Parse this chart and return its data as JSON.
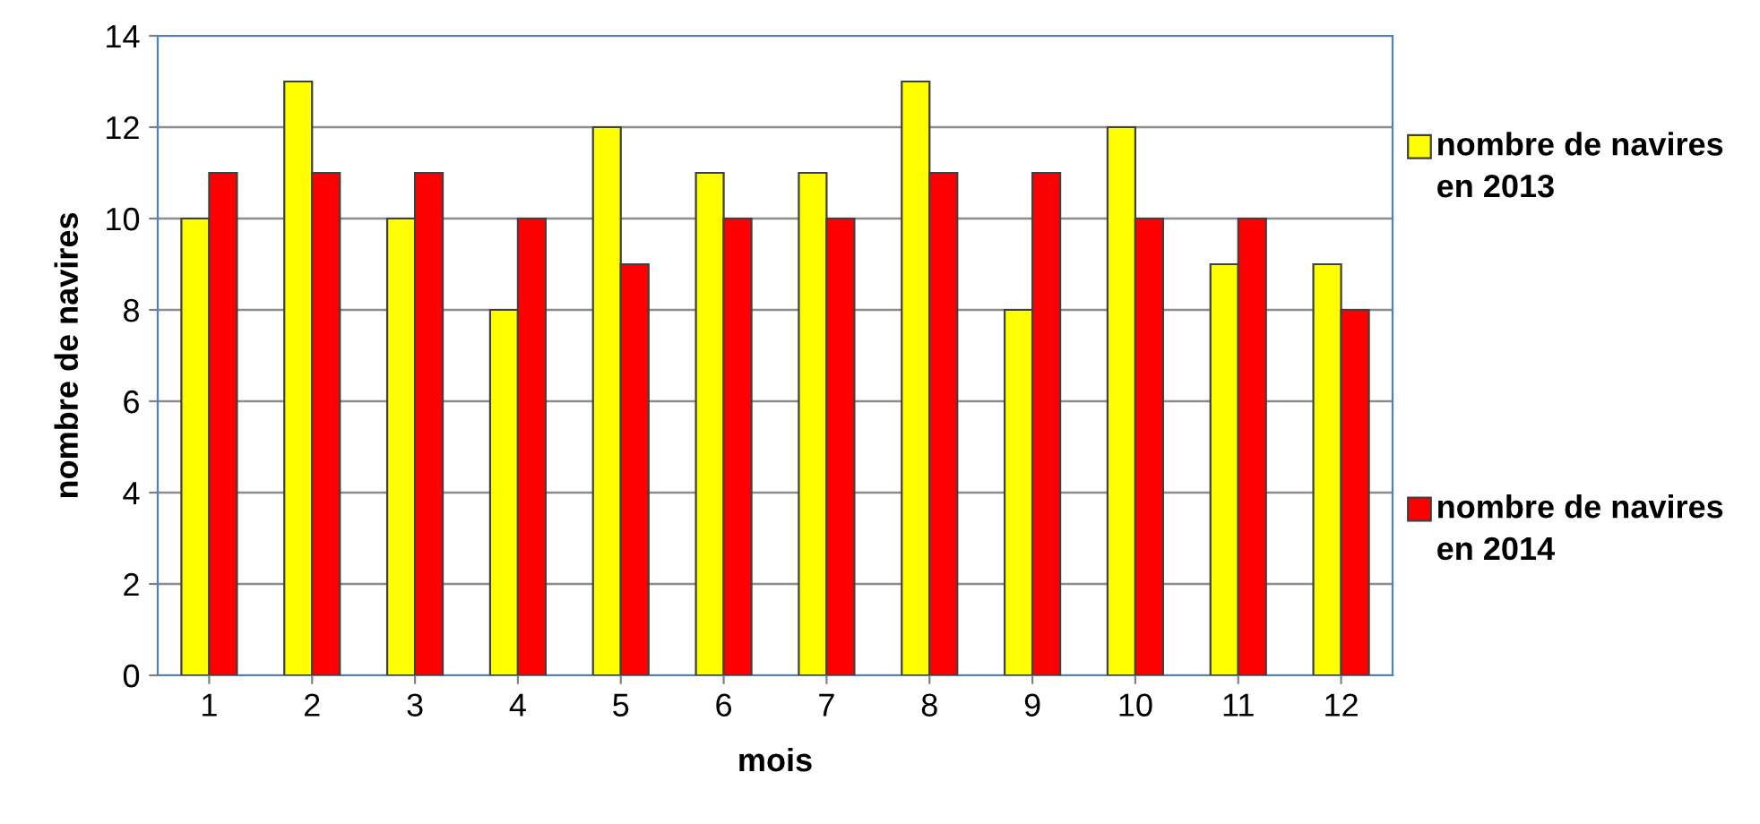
{
  "chart_data": {
    "type": "bar",
    "xlabel": "mois",
    "ylabel": "nombre de navires",
    "categories": [
      "1",
      "2",
      "3",
      "4",
      "5",
      "6",
      "7",
      "8",
      "9",
      "10",
      "11",
      "12"
    ],
    "series": [
      {
        "name": "nombre de navires en 2013",
        "color": "#ffff00",
        "values": [
          10,
          13,
          10,
          8,
          12,
          11,
          11,
          13,
          8,
          12,
          9,
          9
        ]
      },
      {
        "name": "nombre de navires en 2014",
        "color": "#ff0000",
        "values": [
          11,
          11,
          11,
          10,
          9,
          10,
          10,
          11,
          11,
          10,
          10,
          8
        ]
      }
    ],
    "ylim": [
      0,
      14
    ],
    "yticks": [
      0,
      2,
      4,
      6,
      8,
      10,
      12,
      14
    ],
    "grid": "y",
    "legend": "right"
  }
}
